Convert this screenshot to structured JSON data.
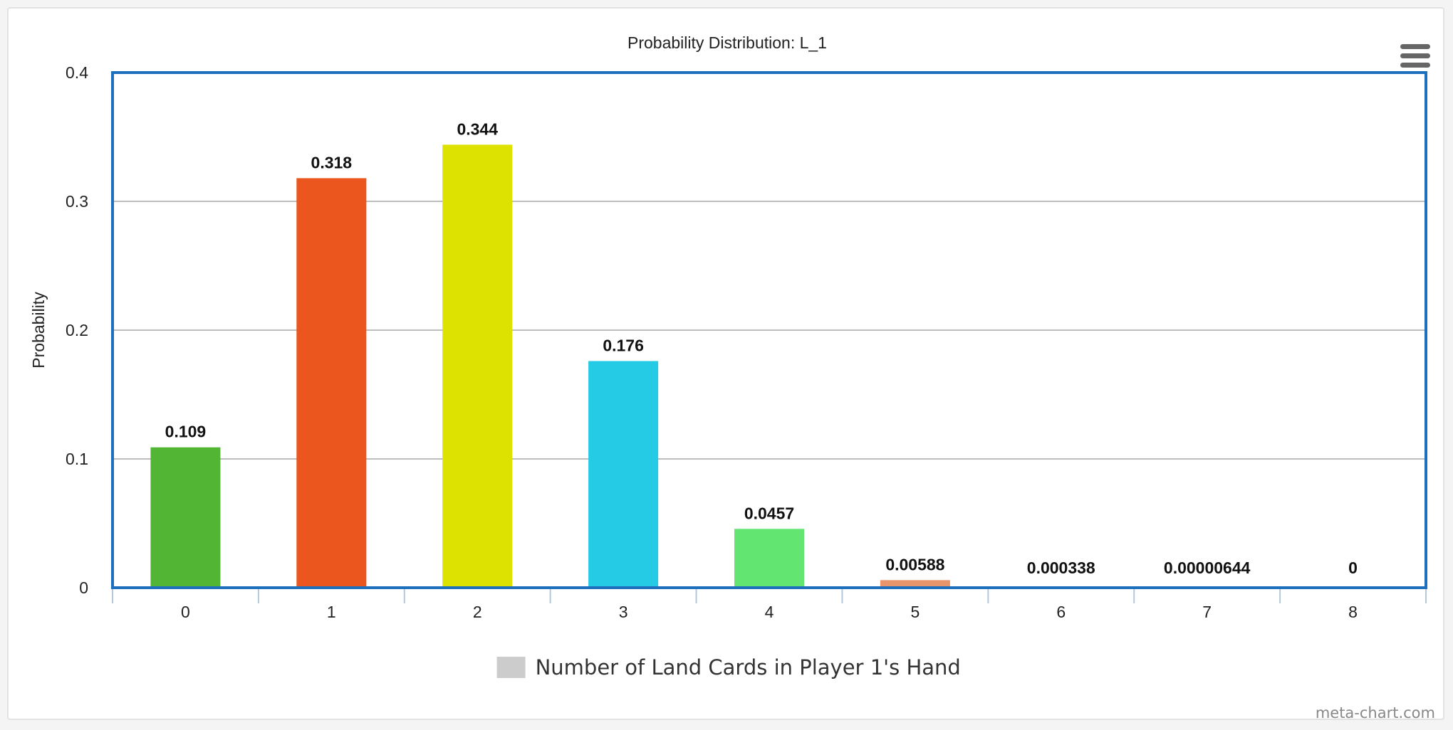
{
  "chart_data": {
    "type": "bar",
    "title": "Probability Distribution: L_1",
    "xlabel": "",
    "ylabel": "Probability",
    "categories": [
      "0",
      "1",
      "2",
      "3",
      "4",
      "5",
      "6",
      "7",
      "8"
    ],
    "values": [
      0.109,
      0.318,
      0.344,
      0.176,
      0.0457,
      0.00588,
      0.000338,
      6.44e-06,
      0
    ],
    "data_labels": [
      "0.109",
      "0.318",
      "0.344",
      "0.176",
      "0.0457",
      "0.00588",
      "0.000338",
      "0.00000644",
      "0"
    ],
    "bar_colors": [
      "#52b533",
      "#ea561e",
      "#dde200",
      "#25cbe5",
      "#63e572",
      "#e8956b",
      "#d9d9d9",
      "#d9d9d9",
      "#d9d9d9"
    ],
    "ylim": [
      0,
      0.4
    ],
    "yticks": [
      0,
      0.1,
      0.2,
      0.3,
      0.4
    ],
    "ytick_labels": [
      "0",
      "0.1",
      "0.2",
      "0.3",
      "0.4"
    ],
    "grid": true,
    "legend": {
      "position": "bottom-center",
      "label": "Number of Land Cards in Player 1's Hand",
      "swatch_color": "#cccccc"
    },
    "plot_border_color": "#1f6fbf"
  },
  "menu": {
    "icon": "hamburger-menu-icon"
  },
  "credit": "meta-chart.com"
}
